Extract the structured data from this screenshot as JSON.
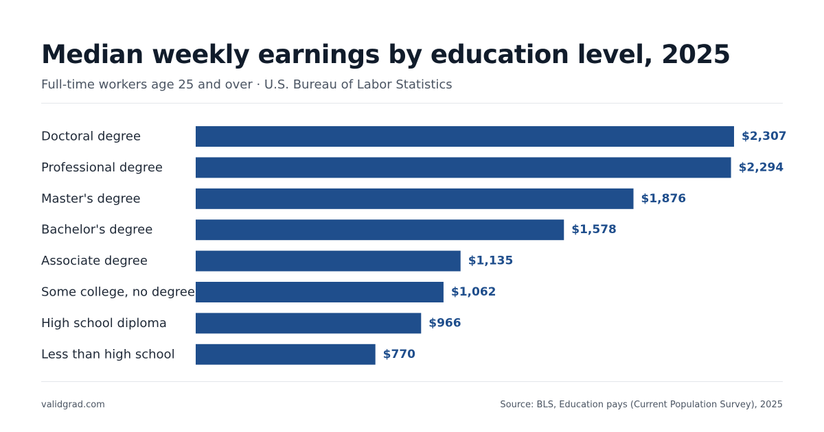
{
  "header": {
    "title": "Median weekly earnings by education level, 2025",
    "subtitle": "Full-time workers age 25 and over · U.S. Bureau of Labor Statistics"
  },
  "footer": {
    "site": "validgrad.com",
    "source": "Source: BLS, Education pays (Current Population Survey), 2025"
  },
  "colors": {
    "bar": "#1f4e8c",
    "value_label": "#1f4e8c"
  },
  "chart_data": {
    "type": "bar",
    "orientation": "horizontal",
    "categories": [
      "Doctoral degree",
      "Professional degree",
      "Master's degree",
      "Bachelor's degree",
      "Associate degree",
      "Some college, no degree",
      "High school diploma",
      "Less than high school"
    ],
    "values": [
      2307,
      2294,
      1876,
      1578,
      1135,
      1062,
      966,
      770
    ],
    "value_labels": [
      "$2,307",
      "$2,294",
      "$1,876",
      "$1,578",
      "$1,135",
      "$1,062",
      "$966",
      "$770"
    ],
    "title": "Median weekly earnings by education level, 2025",
    "subtitle": "Full-time workers age 25 and over · U.S. Bureau of Labor Statistics",
    "xlim": [
      0,
      2307
    ],
    "grid": false,
    "legend": "none"
  }
}
